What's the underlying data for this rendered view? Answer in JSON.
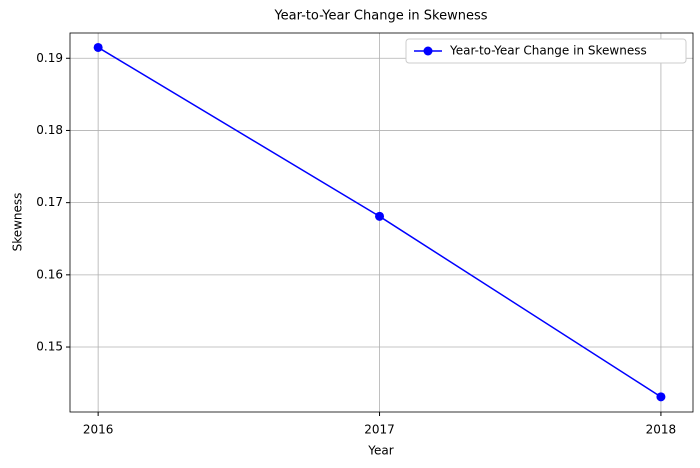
{
  "chart_data": {
    "type": "line",
    "title": "Year-to-Year Change in Skewness",
    "x_label": "Year",
    "y_label": "Skewness",
    "x": [
      2016,
      2017,
      2018
    ],
    "series": [
      {
        "name": "Year-to-Year Change in Skewness",
        "color": "#0000ff",
        "values": [
          0.1915,
          0.1681,
          0.1431
        ]
      }
    ],
    "xlim": [
      2015.9,
      2018.114
    ],
    "xticks": [
      2016,
      2017,
      2018
    ],
    "ylim": [
      0.141,
      0.1935
    ],
    "yticks": [
      0.15,
      0.16,
      0.17,
      0.18,
      0.19
    ],
    "grid": true,
    "legend": "upper right"
  }
}
